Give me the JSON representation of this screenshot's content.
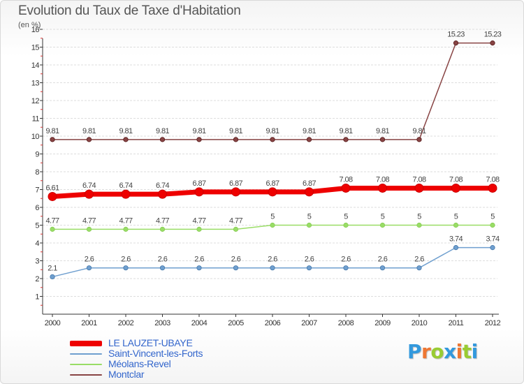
{
  "chart_data": {
    "type": "line",
    "title": "Evolution du Taux de Taxe d'Habitation",
    "ylabel": "(en %)",
    "xlabel": "",
    "x": [
      "2000",
      "2001",
      "2002",
      "2003",
      "2004",
      "2005",
      "2006",
      "2007",
      "2008",
      "2009",
      "2010",
      "2011",
      "2012"
    ],
    "ylim": [
      0,
      16
    ],
    "yticks": [
      "1",
      "2",
      "3",
      "4",
      "5",
      "6",
      "7",
      "8",
      "9",
      "10",
      "11",
      "12",
      "13",
      "14",
      "15",
      "16"
    ],
    "grid": "horizontal",
    "legend_position": "bottom-left",
    "series": [
      {
        "name": "LE LAUZET-UBAYE",
        "color": "#ee0000",
        "style": "thick",
        "values": [
          6.61,
          6.74,
          6.74,
          6.74,
          6.87,
          6.87,
          6.87,
          6.87,
          7.08,
          7.08,
          7.08,
          7.08,
          7.08
        ],
        "labels": [
          "6.61",
          "6.74",
          "6.74",
          "6.74",
          "6.87",
          "6.87",
          "6.87",
          "6.87",
          "7.08",
          "7.08",
          "7.08",
          "7.08",
          "7.08"
        ]
      },
      {
        "name": "Saint-Vincent-les-Forts",
        "color": "#6f9fcf",
        "style": "thin",
        "values": [
          2.1,
          2.6,
          2.6,
          2.6,
          2.6,
          2.6,
          2.6,
          2.6,
          2.6,
          2.6,
          2.6,
          3.74,
          3.74
        ],
        "labels": [
          "2.1",
          "2.6",
          "2.6",
          "2.6",
          "2.6",
          "2.6",
          "2.6",
          "2.6",
          "2.6",
          "2.6",
          "2.6",
          "3.74",
          "3.74"
        ]
      },
      {
        "name": "Méolans-Revel",
        "color": "#99dd66",
        "style": "thin",
        "values": [
          4.77,
          4.77,
          4.77,
          4.77,
          4.77,
          4.77,
          5,
          5,
          5,
          5,
          5,
          5,
          5
        ],
        "labels": [
          "4.77",
          "4.77",
          "4.77",
          "4.77",
          "4.77",
          "4.77",
          "5",
          "5",
          "5",
          "5",
          "5",
          "5",
          "5"
        ]
      },
      {
        "name": "Montclar",
        "color": "#884444",
        "style": "thin",
        "values": [
          9.81,
          9.81,
          9.81,
          9.81,
          9.81,
          9.81,
          9.81,
          9.81,
          9.81,
          9.81,
          9.81,
          15.23,
          15.23
        ],
        "labels": [
          "9.81",
          "9.81",
          "9.81",
          "9.81",
          "9.81",
          "9.81",
          "9.81",
          "9.81",
          "9.81",
          "9.81",
          "9.81",
          "15.23",
          "15.23"
        ]
      }
    ]
  },
  "logo": {
    "letters": [
      "P",
      "r",
      "o",
      "x",
      "i",
      "t",
      "i"
    ],
    "colors": [
      "#3399dd",
      "#ee7733",
      "#99cc33",
      "#3399dd",
      "#ee7733",
      "#99cc33",
      "#3399dd"
    ]
  }
}
